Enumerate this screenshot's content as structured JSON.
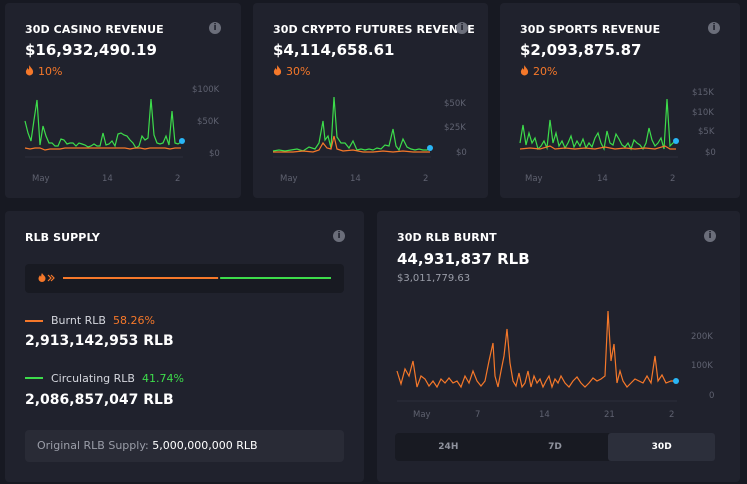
{
  "casino": {
    "title": "30D CASINO REVENUE",
    "value": "$16,932,490.19",
    "pct": "10%",
    "y_ticks": [
      "$100K",
      "$50K",
      "$0"
    ],
    "x_ticks": [
      "May",
      "14",
      "2"
    ]
  },
  "crypto": {
    "title": "30D CRYPTO FUTURES REVENUE",
    "value": "$4,114,658.61",
    "pct": "30%",
    "y_ticks": [
      "$50K",
      "$25K",
      "$0"
    ],
    "x_ticks": [
      "May",
      "14",
      "2"
    ]
  },
  "sports": {
    "title": "30D SPORTS REVENUE",
    "value": "$2,093,875.87",
    "pct": "20%",
    "y_ticks": [
      "$15K",
      "$10K",
      "$5K",
      "$0"
    ],
    "x_ticks": [
      "May",
      "14",
      "2"
    ]
  },
  "supply": {
    "title": "RLB SUPPLY",
    "burnt_pct_value": 58.26,
    "burnt_label": "Burnt RLB",
    "burnt_pct": "58.26%",
    "burnt_value": "2,913,142,953 RLB",
    "circ_label": "Circulating RLB",
    "circ_pct": "41.74%",
    "circ_value": "2,086,857,047 RLB",
    "original_label": "Original RLB Supply:",
    "original_value": "5,000,000,000 RLB"
  },
  "burnt": {
    "title": "30D RLB BURNT",
    "value": "44,931,837 RLB",
    "usd": "$3,011,779.63",
    "y_ticks": [
      "200K",
      "100K",
      "0"
    ],
    "x_ticks": [
      "May",
      "7",
      "14",
      "21",
      "2"
    ],
    "tabs": [
      "24H",
      "7D",
      "30D"
    ],
    "active_tab": "30D"
  },
  "colors": {
    "green": "#3ddc4b",
    "orange": "#f5782a",
    "cyan": "#29b6f6"
  }
}
